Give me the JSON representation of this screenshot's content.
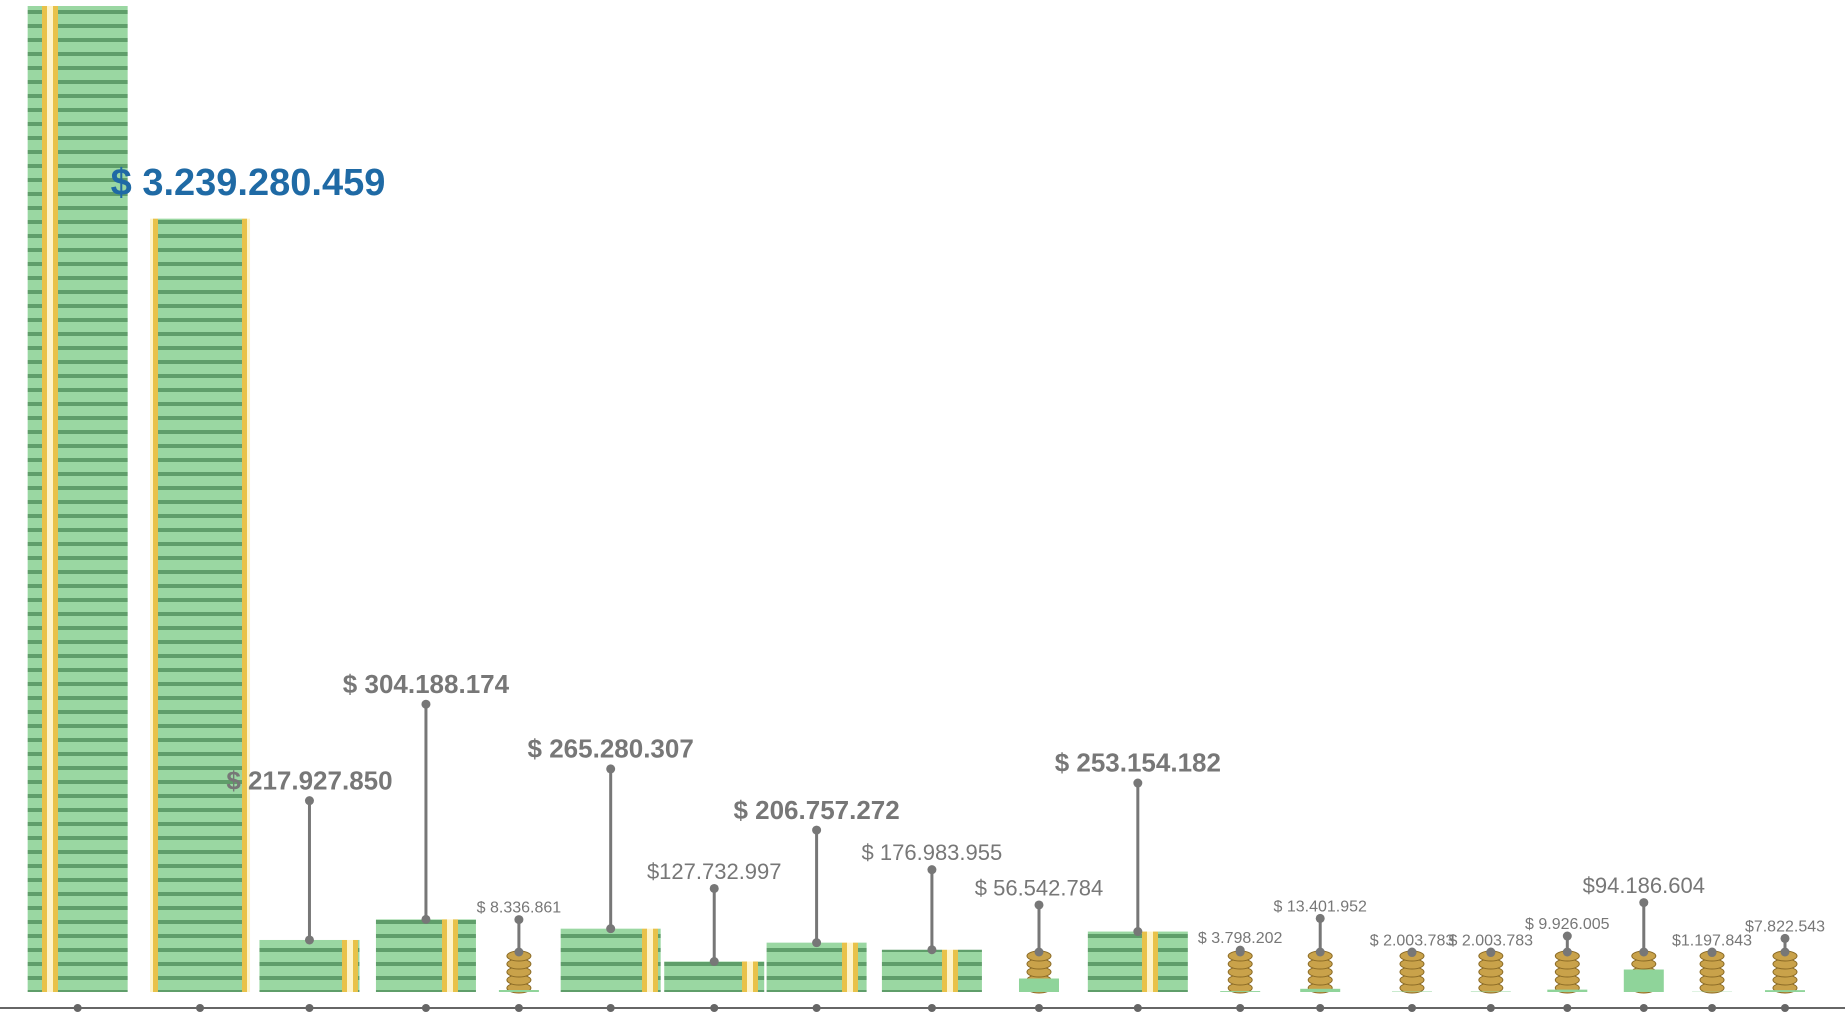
{
  "chart_data": {
    "type": "bar",
    "values": [
      4130000000,
      3239280459,
      217927850,
      304188174,
      8336861,
      265280307,
      127732997,
      206757272,
      176983955,
      56542784,
      253154182,
      3798202,
      13401952,
      2003783,
      2003783,
      9926005,
      94186604,
      1197843,
      7822543
    ],
    "value_labels": [
      null,
      "$ 3.239.280.459",
      "$ 217.927.850",
      "$ 304.188.174",
      "$ 8.336.861",
      "$ 265.280.307",
      "$127.732.997",
      "$ 206.757.272",
      "$ 176.983.955",
      "$ 56.542.784",
      "$ 253.154.182",
      "$ 3.798.202",
      "$ 13.401.952",
      "$ 2.003.783",
      "$ 2.003.783",
      "$ 9.926.005",
      "$94.186.604",
      "$1.197.843",
      "$7.822.543"
    ],
    "color": "#8fd49a"
  }
}
